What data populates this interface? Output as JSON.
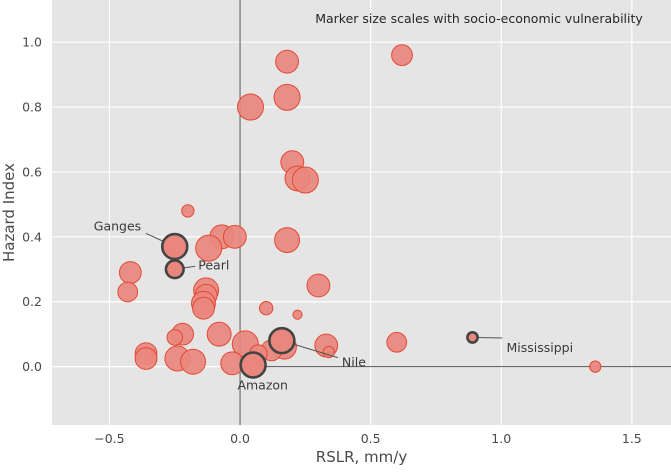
{
  "chart_data": {
    "type": "scatter",
    "title": "",
    "xlabel": "RSLR, mm/y",
    "ylabel": "Hazard Index",
    "xlim": [
      -0.72,
      1.65
    ],
    "ylim": [
      -0.18,
      1.13
    ],
    "x_ticks": [
      -0.5,
      0.0,
      0.5,
      1.0,
      1.5
    ],
    "x_tick_labels": [
      "−0.5",
      "0.0",
      "0.5",
      "1.0",
      "1.5"
    ],
    "y_ticks": [
      0.0,
      0.2,
      0.4,
      0.6,
      0.8,
      1.0
    ],
    "y_tick_labels": [
      "0.0",
      "0.2",
      "0.4",
      "0.6",
      "0.8",
      "1.0"
    ],
    "grid": true,
    "reference_lines": {
      "x": 0,
      "y": 0
    },
    "note": "Marker size scales with socio-economic vulnerability",
    "colors": {
      "background": "#e5e5e5",
      "grid": "#ffffff",
      "marker_fill": "#e9877e",
      "marker_edge": "#e24a33",
      "highlight_edge": "#444444",
      "reference_line": "#555555"
    },
    "points": [
      {
        "x": 0.62,
        "y": 0.96,
        "size": 0.75
      },
      {
        "x": 0.18,
        "y": 0.94,
        "size": 0.85
      },
      {
        "x": 0.18,
        "y": 0.83,
        "size": 1.0
      },
      {
        "x": 0.04,
        "y": 0.8,
        "size": 1.0
      },
      {
        "x": 0.2,
        "y": 0.63,
        "size": 0.85
      },
      {
        "x": 0.22,
        "y": 0.58,
        "size": 0.95
      },
      {
        "x": 0.25,
        "y": 0.575,
        "size": 1.0
      },
      {
        "x": -0.2,
        "y": 0.48,
        "size": 0.35
      },
      {
        "x": -0.07,
        "y": 0.4,
        "size": 0.9
      },
      {
        "x": -0.02,
        "y": 0.4,
        "size": 0.85
      },
      {
        "x": 0.18,
        "y": 0.39,
        "size": 0.95
      },
      {
        "x": -0.12,
        "y": 0.365,
        "size": 1.0
      },
      {
        "x": -0.42,
        "y": 0.29,
        "size": 0.8
      },
      {
        "x": 0.3,
        "y": 0.25,
        "size": 0.85
      },
      {
        "x": -0.43,
        "y": 0.23,
        "size": 0.7
      },
      {
        "x": -0.13,
        "y": 0.235,
        "size": 0.95
      },
      {
        "x": -0.13,
        "y": 0.22,
        "size": 0.8
      },
      {
        "x": -0.14,
        "y": 0.195,
        "size": 0.9
      },
      {
        "x": -0.14,
        "y": 0.18,
        "size": 0.8
      },
      {
        "x": 0.1,
        "y": 0.18,
        "size": 0.4
      },
      {
        "x": 0.22,
        "y": 0.16,
        "size": 0.2
      },
      {
        "x": -0.08,
        "y": 0.1,
        "size": 0.9
      },
      {
        "x": -0.22,
        "y": 0.1,
        "size": 0.8
      },
      {
        "x": -0.25,
        "y": 0.09,
        "size": 0.5
      },
      {
        "x": 0.02,
        "y": 0.07,
        "size": 1.0
      },
      {
        "x": 0.6,
        "y": 0.075,
        "size": 0.7
      },
      {
        "x": 0.33,
        "y": 0.065,
        "size": 0.85
      },
      {
        "x": 0.17,
        "y": 0.06,
        "size": 0.9
      },
      {
        "x": 0.12,
        "y": 0.05,
        "size": 0.75
      },
      {
        "x": 0.34,
        "y": 0.045,
        "size": 0.3
      },
      {
        "x": 0.07,
        "y": 0.04,
        "size": 0.6
      },
      {
        "x": -0.36,
        "y": 0.04,
        "size": 0.8
      },
      {
        "x": -0.36,
        "y": 0.025,
        "size": 0.8
      },
      {
        "x": -0.24,
        "y": 0.025,
        "size": 0.95
      },
      {
        "x": -0.18,
        "y": 0.015,
        "size": 0.95
      },
      {
        "x": -0.03,
        "y": 0.01,
        "size": 0.85
      },
      {
        "x": 1.36,
        "y": 0.0,
        "size": 0.3
      }
    ],
    "highlighted": [
      {
        "name": "Ganges",
        "x": -0.25,
        "y": 0.37,
        "size": 0.95,
        "label_x": -0.56,
        "label_y": 0.42,
        "align": "start"
      },
      {
        "name": "Pearl",
        "x": -0.25,
        "y": 0.3,
        "size": 0.6,
        "label_x": -0.16,
        "label_y": 0.3,
        "align": "start"
      },
      {
        "name": "Mississippi",
        "x": 0.89,
        "y": 0.09,
        "size": 0.25,
        "label_x": 1.02,
        "label_y": 0.045,
        "align": "start"
      },
      {
        "name": "Nile",
        "x": 0.16,
        "y": 0.08,
        "size": 0.95,
        "label_x": 0.39,
        "label_y": 0.0,
        "align": "start"
      },
      {
        "name": "Amazon",
        "x": 0.05,
        "y": 0.005,
        "size": 0.95,
        "label_x": -0.01,
        "label_y": -0.07,
        "align": "start"
      }
    ]
  }
}
